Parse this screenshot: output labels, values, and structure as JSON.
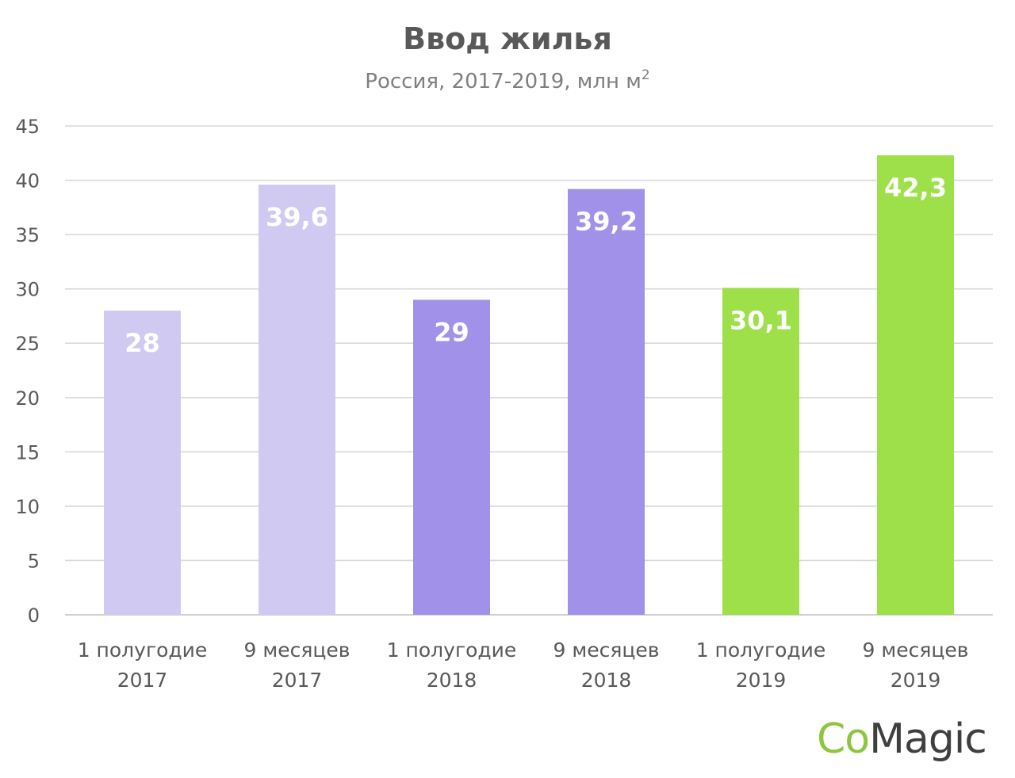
{
  "chart_data": {
    "type": "bar",
    "title": "Ввод жилья",
    "subtitle_main": "Россия, 2017-2019, млн м",
    "subtitle_sup": "2",
    "categories": [
      [
        "1 полугодие",
        "2017"
      ],
      [
        "9 месяцев",
        "2017"
      ],
      [
        "1 полугодие",
        "2018"
      ],
      [
        "9 месяцев",
        "2018"
      ],
      [
        "1 полугодие",
        "2019"
      ],
      [
        "9 месяцев",
        "2019"
      ]
    ],
    "values": [
      28,
      39.6,
      29,
      39.2,
      30.1,
      42.3
    ],
    "data_labels": [
      "28",
      "39,6",
      "29",
      "39,2",
      "30,1",
      "42,3"
    ],
    "colors": [
      "#d0c9f2",
      "#d0c9f2",
      "#a191e8",
      "#a191e8",
      "#9de04a",
      "#9de04a"
    ],
    "ylim": [
      0,
      45
    ],
    "yticks": [
      0,
      5,
      10,
      15,
      20,
      25,
      30,
      35,
      40,
      45
    ],
    "grid": true,
    "legend": "none"
  },
  "logo": {
    "part1": "Co",
    "part2": "Magic",
    "color1": "#8cc63f",
    "color2": "#3f3f3f"
  }
}
